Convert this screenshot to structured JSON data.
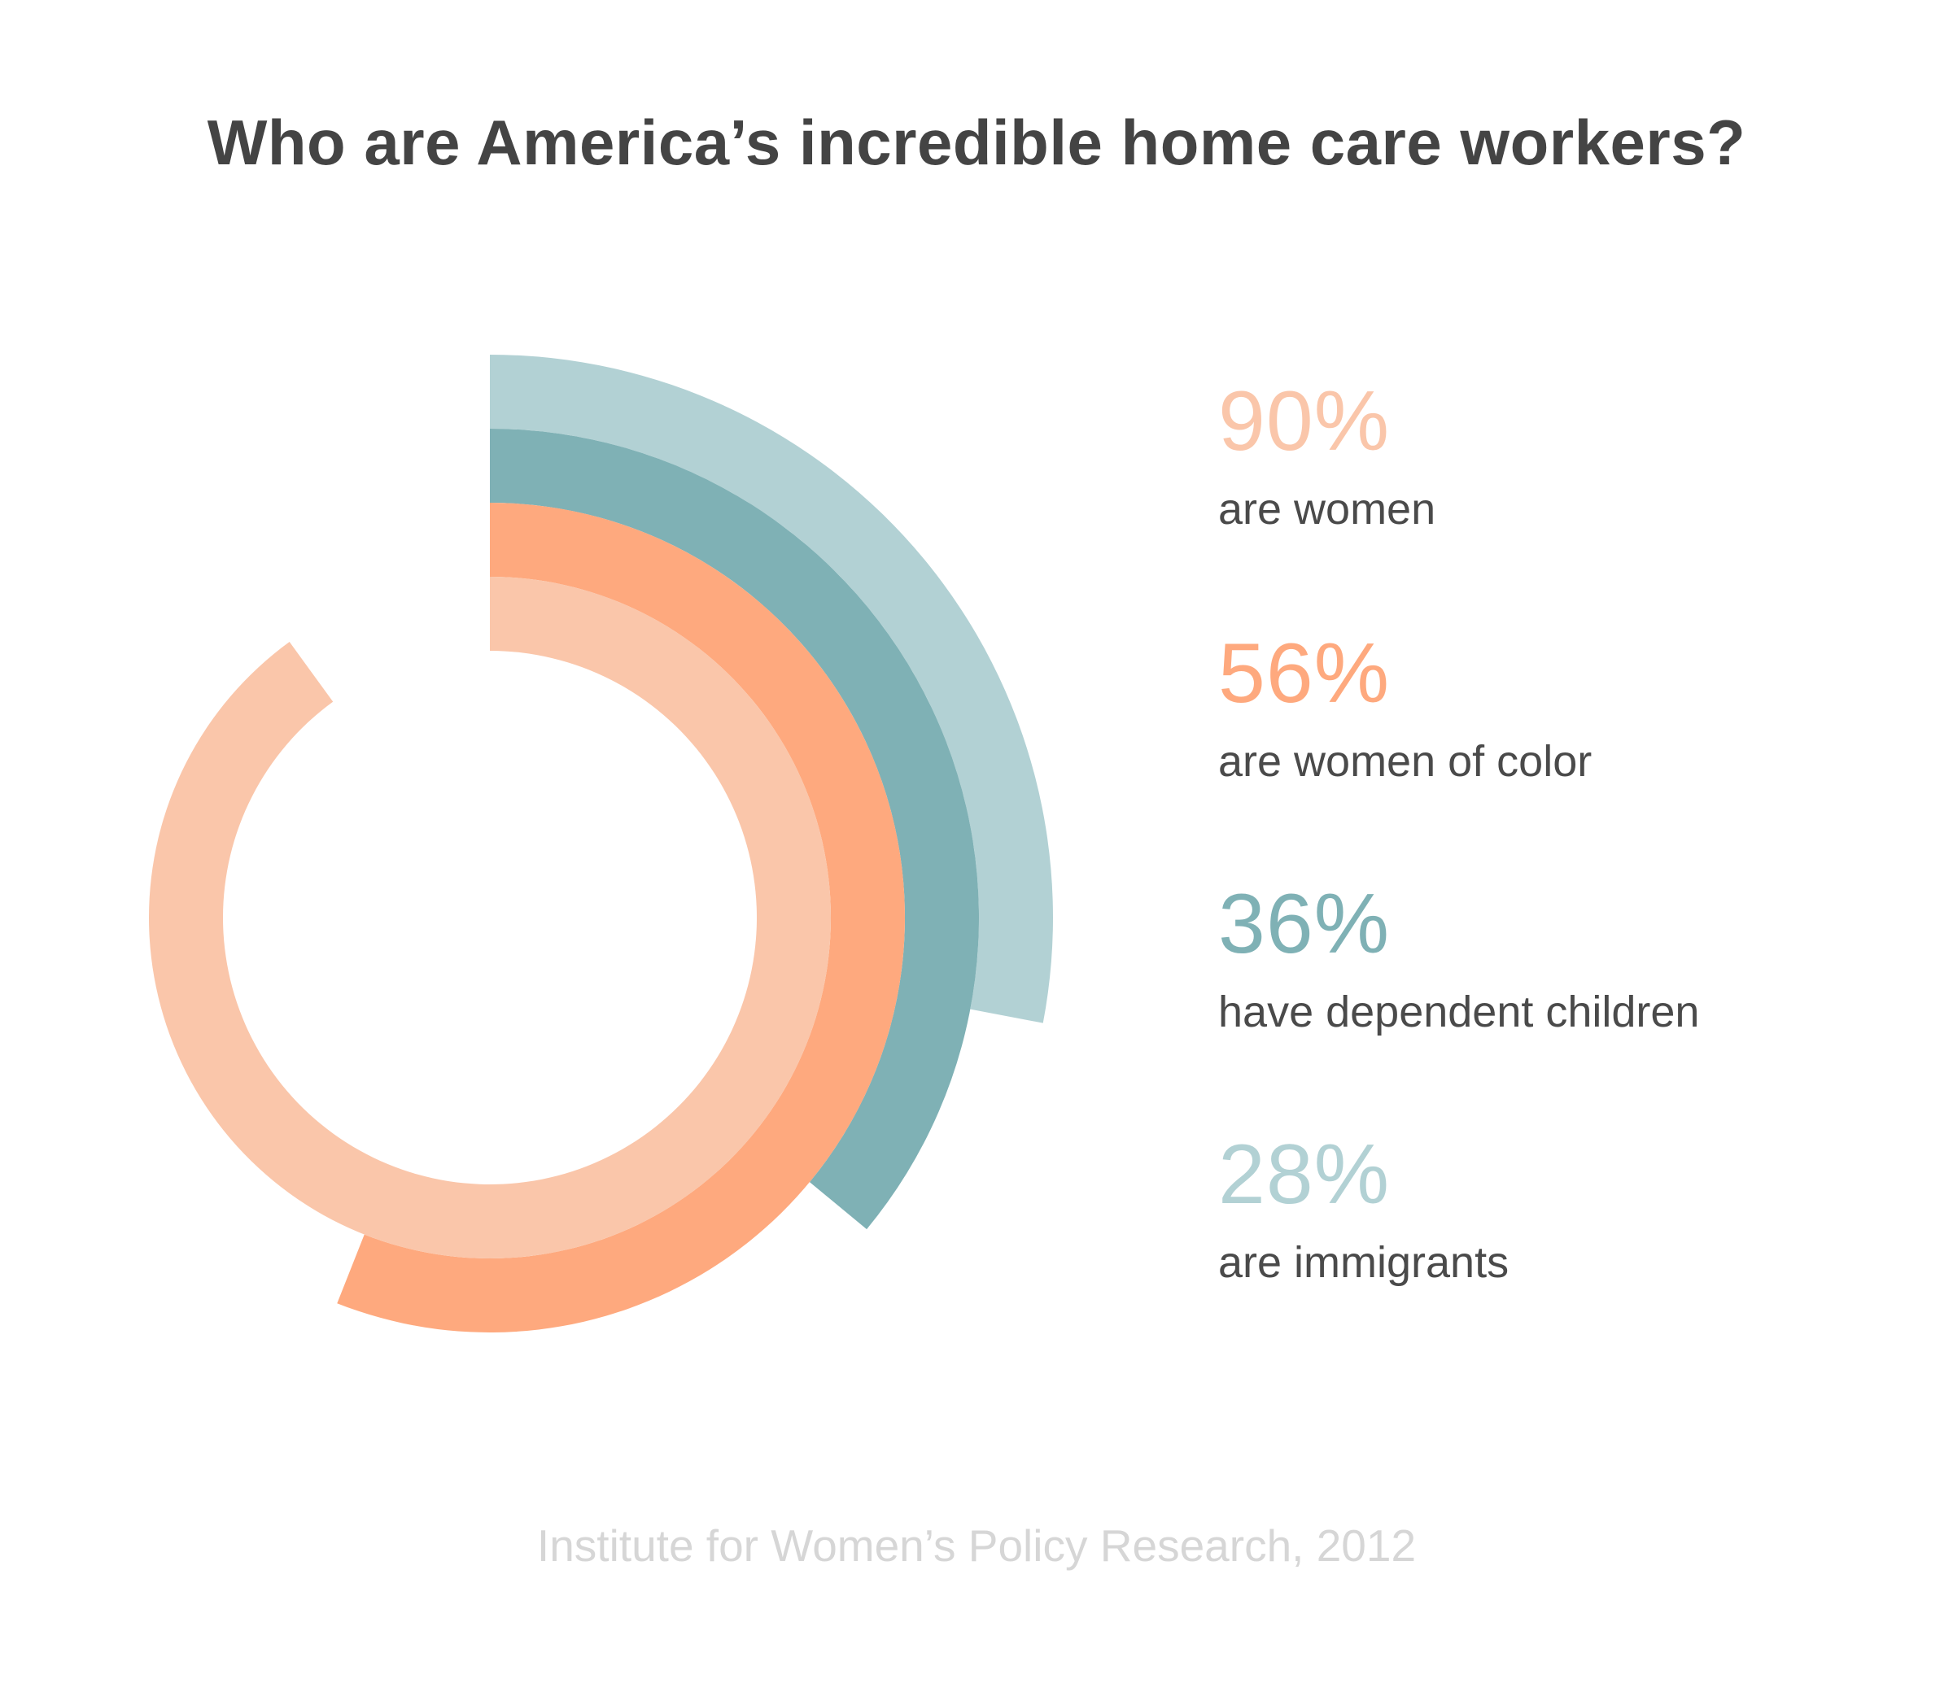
{
  "chart_data": {
    "type": "radial-bar",
    "title": "Who are America’s incredible home care workers?",
    "unit": "%",
    "series": [
      {
        "name": "are women",
        "value": 90,
        "display": "90%",
        "color": "#fac6aa"
      },
      {
        "name": "are women of color",
        "value": 56,
        "display": "56%",
        "color": "#fea97e"
      },
      {
        "name": "have dependent children",
        "value": 36,
        "display": "36%",
        "color": "#7fb1b5"
      },
      {
        "name": "are immigrants",
        "value": 28,
        "display": "28%",
        "color": "#b2d1d4"
      }
    ],
    "source": "Institute for Women’s Policy Research, 2012"
  }
}
